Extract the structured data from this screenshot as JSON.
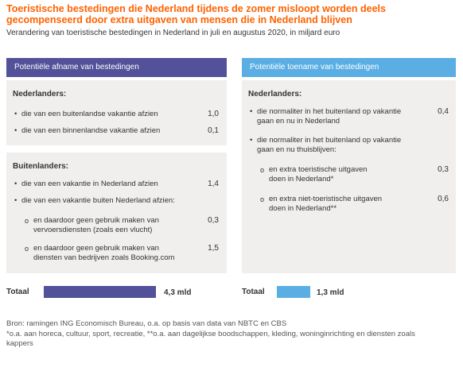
{
  "title": "Toeristische bestedingen die Nederland tijdens de zomer misloopt worden deels gecompenseerd door extra uitgaven van mensen die in Nederland blijven",
  "subtitle": "Verandering van toeristische bestedingen in Nederland in juli en augustus 2020, in miljard euro",
  "left": {
    "header": "Potentiële afname van bestedingen",
    "group1": {
      "title": "Nederlanders:",
      "items": [
        {
          "label": "die van een buitenlandse vakantie afzien",
          "value": "1,0"
        },
        {
          "label": "die van een binnenlandse vakantie afzien",
          "value": "0,1"
        }
      ]
    },
    "group2": {
      "title": "Buitenlanders:",
      "items": [
        {
          "label": "die van een vakantie in Nederland afzien",
          "value": "1,4"
        },
        {
          "label": "die van een vakantie buiten Nederland afzien:",
          "value": ""
        }
      ],
      "subitems": [
        {
          "label_line1": "en daardoor geen gebruik maken van",
          "label_line2": "vervoersdiensten (zoals een vlucht)",
          "value": "0,3"
        },
        {
          "label_line1": "en daardoor geen gebruik maken van",
          "label_line2": "diensten van bedrijven zoals Booking.com",
          "value": "1,5"
        }
      ]
    },
    "total_label": "Totaal",
    "total_value": "4,3 mld",
    "total_amount": 4.3
  },
  "right": {
    "header": "Potentiële toename van bestedingen",
    "group1": {
      "title": "Nederlanders:",
      "items": [
        {
          "label_line1": "die normaliter in het buitenland op vakantie",
          "label_line2": "gaan en nu in Nederland",
          "value": "0,4"
        },
        {
          "label_line1": "die normaliter in het buitenland op vakantie",
          "label_line2": "gaan en nu thuisblijven:",
          "value": ""
        }
      ],
      "subitems": [
        {
          "label_line1": "en extra toeristische uitgaven",
          "label_line2": "doen in Nederland*",
          "value": "0,3"
        },
        {
          "label_line1": "en extra niet-toeristische uitgaven",
          "label_line2": "doen in Nederland**",
          "value": "0,6"
        }
      ]
    },
    "total_label": "Totaal",
    "total_value": "1,3 mld",
    "total_amount": 1.3
  },
  "source": "Bron: ramingen ING Economisch Bureau, o.a. op basis van data van NBTC en CBS",
  "note": "*o.a. aan horeca, cultuur, sport, recreatie, **o.a. aan dagelijkse boodschappen, kleding, woninginrichting en diensten zoals kappers",
  "colors": {
    "title": "#ff6200",
    "left_accent": "#525199",
    "right_accent": "#5aaee3",
    "box_bg": "#f1efed"
  }
}
